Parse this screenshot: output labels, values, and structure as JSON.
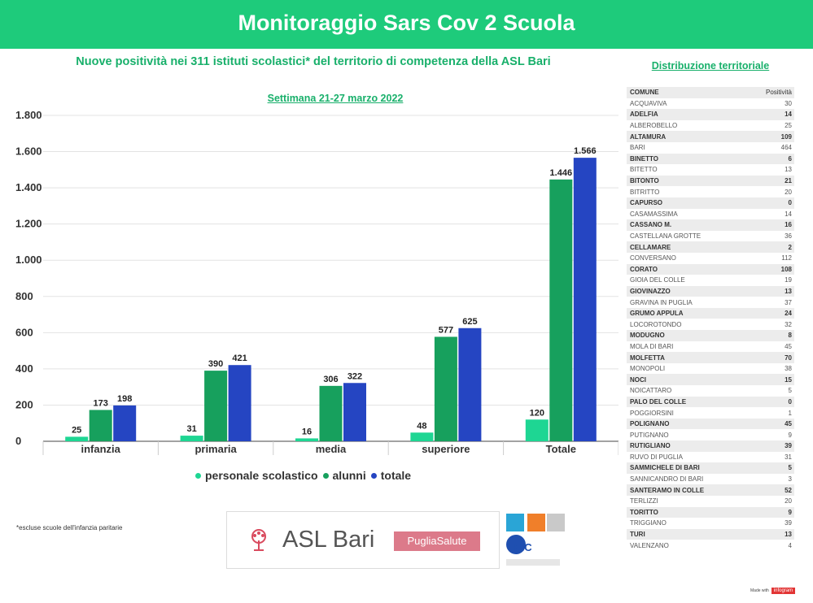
{
  "header": {
    "title": "Monitoraggio Sars Cov 2 Scuola"
  },
  "subtitle": "Nuove positività nei 311 istituti scolastici* del territorio di competenza della ASL Bari",
  "week_label": "Settimana 21-27 marzo 2022",
  "footnote": "*escluse scuole dell'infanzia paritarie",
  "logos": {
    "asl_text": "ASL Bari",
    "puglia_text": "PugliaSalute",
    "eic_text": "EIC"
  },
  "colors": {
    "header": "#1ecb7b",
    "personale": "#1ed693",
    "alunni": "#17a05d",
    "totale": "#2545c2"
  },
  "chart_data": {
    "type": "bar",
    "categories": [
      "infanzia",
      "primaria",
      "media",
      "superiore",
      "Totale"
    ],
    "series": [
      {
        "name": "personale scolastico",
        "values": [
          25,
          31,
          16,
          48,
          120
        ],
        "labels": [
          "25",
          "31",
          "16",
          "48",
          "120"
        ]
      },
      {
        "name": "alunni",
        "values": [
          173,
          390,
          306,
          577,
          1446
        ],
        "labels": [
          "173",
          "390",
          "306",
          "577",
          "1.446"
        ]
      },
      {
        "name": "totale",
        "values": [
          198,
          421,
          322,
          625,
          1566
        ],
        "labels": [
          "198",
          "421",
          "322",
          "625",
          "1.566"
        ]
      }
    ],
    "ylim": [
      0,
      1800
    ],
    "yticks": [
      0,
      200,
      400,
      600,
      800,
      1000,
      1200,
      1400,
      1600,
      1800
    ],
    "ytick_labels": [
      "0",
      "200",
      "400",
      "600",
      "800",
      "1.000",
      "1.200",
      "1.400",
      "1.600",
      "1.800"
    ],
    "grid": true,
    "legend": "bottom"
  },
  "distribution": {
    "title": "Distribuzione territoriale",
    "headers": [
      "COMUNE",
      "Positività"
    ],
    "rows": [
      [
        "ACQUAVIVA",
        "30"
      ],
      [
        "ADELFIA",
        "14"
      ],
      [
        "ALBEROBELLO",
        "25"
      ],
      [
        "ALTAMURA",
        "109"
      ],
      [
        "BARI",
        "464"
      ],
      [
        "BINETTO",
        "6"
      ],
      [
        "BITETTO",
        "13"
      ],
      [
        "BITONTO",
        "21"
      ],
      [
        "BITRITTO",
        "20"
      ],
      [
        "CAPURSO",
        "0"
      ],
      [
        "CASAMASSIMA",
        "14"
      ],
      [
        "CASSANO M.",
        "16"
      ],
      [
        "CASTELLANA GROTTE",
        "36"
      ],
      [
        "CELLAMARE",
        "2"
      ],
      [
        "CONVERSANO",
        "112"
      ],
      [
        "CORATO",
        "108"
      ],
      [
        "GIOIA DEL COLLE",
        "19"
      ],
      [
        "GIOVINAZZO",
        "13"
      ],
      [
        "GRAVINA IN PUGLIA",
        "37"
      ],
      [
        "GRUMO APPULA",
        "24"
      ],
      [
        "LOCOROTONDO",
        "32"
      ],
      [
        "MODUGNO",
        "8"
      ],
      [
        "MOLA DI BARI",
        "45"
      ],
      [
        "MOLFETTA",
        "70"
      ],
      [
        "MONOPOLI",
        "38"
      ],
      [
        "NOCI",
        "15"
      ],
      [
        "NOICATTARO",
        "5"
      ],
      [
        "PALO DEL COLLE",
        "0"
      ],
      [
        "POGGIORSINI",
        "1"
      ],
      [
        "POLIGNANO",
        "45"
      ],
      [
        "PUTIGNANO",
        "9"
      ],
      [
        "RUTIGLIANO",
        "39"
      ],
      [
        "RUVO DI PUGLIA",
        "31"
      ],
      [
        "SAMMICHELE DI BARI",
        "5"
      ],
      [
        "SANNICANDRO DI BARI",
        "3"
      ],
      [
        "SANTERAMO IN COLLE",
        "52"
      ],
      [
        "TERLIZZI",
        "20"
      ],
      [
        "TORITTO",
        "9"
      ],
      [
        "TRIGGIANO",
        "39"
      ],
      [
        "TURI",
        "13"
      ],
      [
        "VALENZANO",
        "4"
      ]
    ]
  },
  "madewith": {
    "label": "Made with",
    "brand": "infogram"
  }
}
